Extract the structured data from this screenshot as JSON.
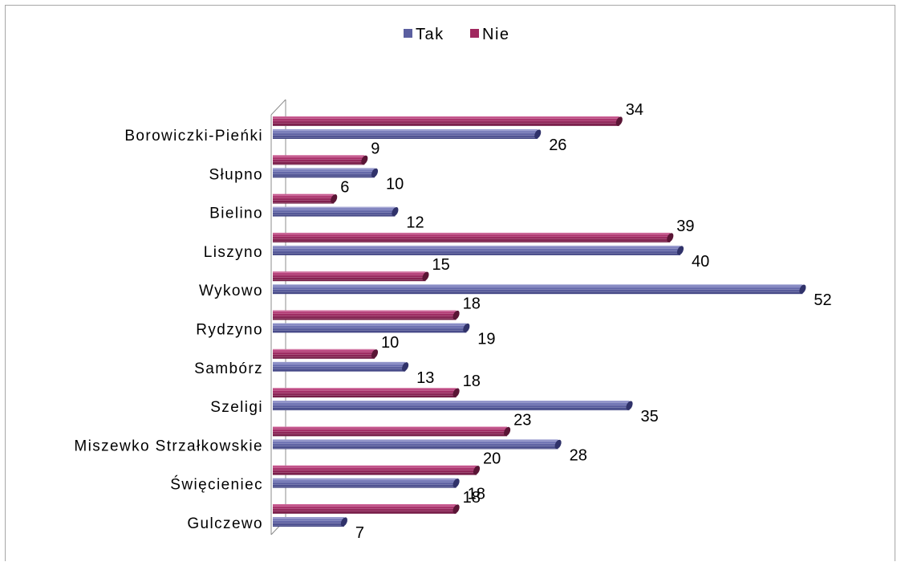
{
  "chart_data": {
    "type": "bar",
    "orientation": "horizontal",
    "legend_position": "top",
    "grid": false,
    "xlim": [
      0,
      55
    ],
    "categories": [
      "Borowiczki-Pieńki",
      "Słupno",
      "Bielino",
      "Liszyno",
      "Wykowo",
      "Rydzyno",
      "Sambórz",
      "Szeligi",
      "Miszewko Strzałkowskie",
      "Święcieniec",
      "Gulczewo"
    ],
    "series": [
      {
        "name": "Tak",
        "color": "#5b5fa0",
        "values": [
          26,
          10,
          12,
          40,
          52,
          19,
          13,
          35,
          28,
          18,
          7
        ]
      },
      {
        "name": "Nie",
        "color": "#a0285f",
        "values": [
          34,
          9,
          6,
          39,
          15,
          18,
          10,
          18,
          23,
          20,
          18
        ]
      }
    ]
  }
}
